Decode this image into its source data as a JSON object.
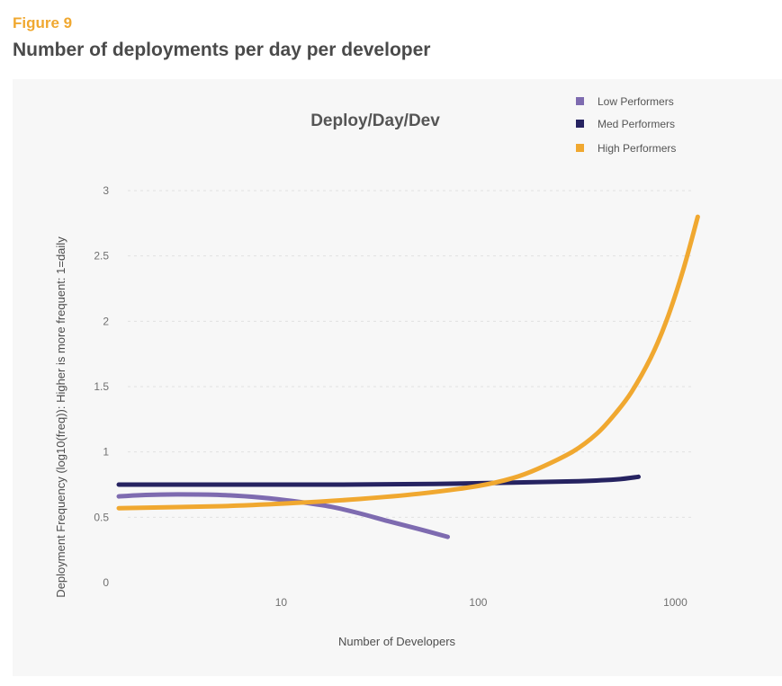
{
  "figure": {
    "label": "Figure 9",
    "title": "Number of deployments per day per developer"
  },
  "chart_data": {
    "type": "line",
    "title": "Deploy/Day/Dev",
    "xlabel": "Number of Developers",
    "ylabel": "Deployment Frequency  (log10(freq)): Higher is more frequent: 1=daily",
    "xscale": "log",
    "xlim": [
      1.5,
      1500
    ],
    "ylim": [
      0,
      3
    ],
    "xticks": [
      {
        "value": 10,
        "label": "10"
      },
      {
        "value": 100,
        "label": "100"
      },
      {
        "value": 1000,
        "label": "1000"
      }
    ],
    "yticks": [
      {
        "value": 0,
        "label": "0"
      },
      {
        "value": 0.5,
        "label": "0.5"
      },
      {
        "value": 1,
        "label": "1"
      },
      {
        "value": 1.5,
        "label": "1.5"
      },
      {
        "value": 2,
        "label": "2"
      },
      {
        "value": 2.5,
        "label": "2.5"
      },
      {
        "value": 3,
        "label": "3"
      }
    ],
    "grid": "horizontal-dashed",
    "legend_position": "top-right",
    "series": [
      {
        "name": "Low Performers",
        "color": "#7e6bb0",
        "x": [
          1.5,
          2,
          3,
          5,
          8,
          12,
          18,
          25,
          35,
          50,
          70
        ],
        "y": [
          0.66,
          0.67,
          0.675,
          0.67,
          0.65,
          0.62,
          0.58,
          0.53,
          0.47,
          0.41,
          0.35
        ]
      },
      {
        "name": "Med Performers",
        "color": "#262361",
        "x": [
          1.5,
          5,
          20,
          60,
          150,
          300,
          500,
          650
        ],
        "y": [
          0.75,
          0.75,
          0.75,
          0.755,
          0.765,
          0.775,
          0.79,
          0.81
        ]
      },
      {
        "name": "High Performers",
        "color": "#f0a830",
        "x": [
          1.5,
          5,
          12,
          25,
          50,
          100,
          150,
          200,
          300,
          400,
          500,
          600,
          750,
          900,
          1100,
          1300
        ],
        "y": [
          0.57,
          0.585,
          0.61,
          0.64,
          0.68,
          0.74,
          0.8,
          0.87,
          1.0,
          1.14,
          1.3,
          1.46,
          1.72,
          2.0,
          2.4,
          2.8
        ]
      }
    ]
  }
}
